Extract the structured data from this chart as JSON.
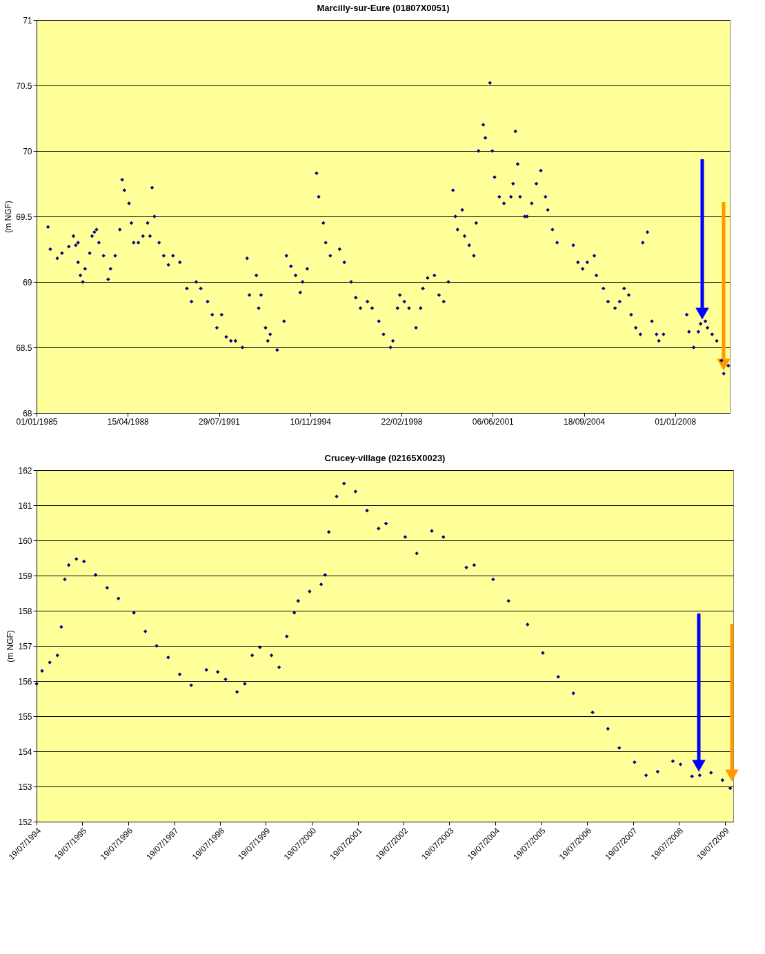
{
  "chart_data": [
    {
      "type": "scatter",
      "title": "Marcilly-sur-Eure (01807X0051)",
      "ylabel": "(m NGF)",
      "marker": "diamond",
      "grid": "y",
      "xlim": [
        "1985-01-01",
        "2009-12-20"
      ],
      "ylim": [
        68,
        71
      ],
      "yticks": [
        68,
        68.5,
        69,
        69.5,
        70,
        70.5,
        71
      ],
      "xticks": [
        {
          "value": "1985-01-01",
          "label": "01/01/1985"
        },
        {
          "value": "1988-04-15",
          "label": "15/04/1988"
        },
        {
          "value": "1991-07-29",
          "label": "29/07/1991"
        },
        {
          "value": "1994-11-10",
          "label": "10/11/1994"
        },
        {
          "value": "1998-02-22",
          "label": "22/02/1998"
        },
        {
          "value": "2001-06-06",
          "label": "06/06/2001"
        },
        {
          "value": "2004-09-18",
          "label": "18/09/2004"
        },
        {
          "value": "2008-01-01",
          "label": "01/01/2008"
        }
      ],
      "x": [
        "1985-06",
        "1985-07",
        "1985-10",
        "1985-12",
        "1986-03",
        "1986-05",
        "1986-06",
        "1986-07",
        "1986-07",
        "1986-08",
        "1986-09",
        "1986-10",
        "1986-12",
        "1987-01",
        "1987-02",
        "1987-03",
        "1987-04",
        "1987-06",
        "1987-08",
        "1987-09",
        "1987-11",
        "1988-01",
        "1988-02",
        "1988-03",
        "1988-05",
        "1988-06",
        "1988-07",
        "1988-09",
        "1988-11",
        "1989-01",
        "1989-02",
        "1989-03",
        "1989-04",
        "1989-06",
        "1989-08",
        "1989-10",
        "1989-12",
        "1990-03",
        "1990-06",
        "1990-08",
        "1990-10",
        "1990-12",
        "1991-03",
        "1991-05",
        "1991-07",
        "1991-09",
        "1991-11",
        "1992-01",
        "1992-03",
        "1992-06",
        "1992-08",
        "1992-09",
        "1992-12",
        "1993-01",
        "1993-02",
        "1993-04",
        "1993-05",
        "1993-06",
        "1993-09",
        "1993-12",
        "1994-01",
        "1994-03",
        "1994-05",
        "1994-07",
        "1994-08",
        "1994-10",
        "1995-02",
        "1995-03",
        "1995-05",
        "1995-06",
        "1995-08",
        "1995-12",
        "1996-02",
        "1996-05",
        "1996-07",
        "1996-09",
        "1996-12",
        "1997-02",
        "1997-05",
        "1997-07",
        "1997-10",
        "1997-11",
        "1998-01",
        "1998-02",
        "1998-04",
        "1998-06",
        "1998-09",
        "1998-11",
        "1998-12",
        "1999-02",
        "1999-05",
        "1999-07",
        "1999-09",
        "1999-11",
        "2000-01",
        "2000-02",
        "2000-03",
        "2000-05",
        "2000-06",
        "2000-08",
        "2000-10",
        "2000-11",
        "2000-12",
        "2001-02",
        "2001-03",
        "2001-05",
        "2001-06",
        "2001-07",
        "2001-09",
        "2001-11",
        "2002-02",
        "2002-03",
        "2002-04",
        "2002-05",
        "2002-06",
        "2002-08",
        "2002-09",
        "2002-11",
        "2003-01",
        "2003-03",
        "2003-05",
        "2003-06",
        "2003-08",
        "2003-10",
        "2004-05",
        "2004-07",
        "2004-09",
        "2004-11",
        "2005-02",
        "2005-03",
        "2005-06",
        "2005-08",
        "2005-11",
        "2006-01",
        "2006-03",
        "2006-05",
        "2006-06",
        "2006-08",
        "2006-10",
        "2006-11",
        "2007-01",
        "2007-03",
        "2007-05",
        "2007-06",
        "2007-08",
        "2008-06",
        "2008-07",
        "2008-09",
        "2008-11",
        "2008-12",
        "2009-02",
        "2009-03",
        "2009-05",
        "2009-07",
        "2009-09",
        "2009-10",
        "2009-12"
      ],
      "series": [
        {
          "color": "#000080",
          "values": [
            69.42,
            69.25,
            69.18,
            69.22,
            69.27,
            69.35,
            69.28,
            69.3,
            69.15,
            69.05,
            69.0,
            69.1,
            69.22,
            69.35,
            69.38,
            69.4,
            69.3,
            69.2,
            69.02,
            69.1,
            69.2,
            69.4,
            69.78,
            69.7,
            69.6,
            69.45,
            69.3,
            69.3,
            69.35,
            69.45,
            69.35,
            69.72,
            69.5,
            69.3,
            69.2,
            69.13,
            69.2,
            69.15,
            68.95,
            68.85,
            69.0,
            68.95,
            68.85,
            68.75,
            68.65,
            68.75,
            68.58,
            68.55,
            68.55,
            68.5,
            69.18,
            68.9,
            69.05,
            68.8,
            68.9,
            68.65,
            68.55,
            68.6,
            68.48,
            68.7,
            69.2,
            69.12,
            69.05,
            68.92,
            69.0,
            69.1,
            69.83,
            69.65,
            69.45,
            69.3,
            69.2,
            69.25,
            69.15,
            69.0,
            68.88,
            68.8,
            68.85,
            68.8,
            68.7,
            68.6,
            68.5,
            68.55,
            68.8,
            68.9,
            68.85,
            68.8,
            68.65,
            68.8,
            68.95,
            69.03,
            69.05,
            68.9,
            68.85,
            69.0,
            69.7,
            69.5,
            69.4,
            69.55,
            69.35,
            69.28,
            69.2,
            69.45,
            70.0,
            70.2,
            70.1,
            70.52,
            70.0,
            69.8,
            69.65,
            69.6,
            69.65,
            69.75,
            70.15,
            69.9,
            69.65,
            69.5,
            69.5,
            69.6,
            69.75,
            69.85,
            69.65,
            69.55,
            69.4,
            69.3,
            69.28,
            69.15,
            69.1,
            69.15,
            69.2,
            69.05,
            68.95,
            68.85,
            68.8,
            68.85,
            68.95,
            68.9,
            68.75,
            68.65,
            68.6,
            69.3,
            69.38,
            68.7,
            68.6,
            68.55,
            68.6,
            68.75,
            68.62,
            68.5,
            68.62,
            68.68,
            68.7,
            68.65,
            68.6,
            68.55,
            68.4,
            68.3,
            68.36
          ]
        }
      ]
    },
    {
      "type": "scatter",
      "title": "Crucey-village (02165X0023)",
      "ylabel": "(m NGF)",
      "marker": "diamond",
      "grid": "y",
      "xlim": [
        "1994-07-19",
        "2009-09-25"
      ],
      "ylim": [
        152,
        162
      ],
      "yticks": [
        152,
        153,
        154,
        155,
        156,
        157,
        158,
        159,
        160,
        161,
        162
      ],
      "xticks": [
        {
          "value": "1994-07-19",
          "label": "19/07/1994"
        },
        {
          "value": "1995-07-19",
          "label": "19/07/1995"
        },
        {
          "value": "1996-07-19",
          "label": "19/07/1996"
        },
        {
          "value": "1997-07-19",
          "label": "19/07/1997"
        },
        {
          "value": "1998-07-19",
          "label": "19/07/1998"
        },
        {
          "value": "1999-07-19",
          "label": "19/07/1999"
        },
        {
          "value": "2000-07-19",
          "label": "19/07/2000"
        },
        {
          "value": "2001-07-19",
          "label": "19/07/2001"
        },
        {
          "value": "2002-07-19",
          "label": "19/07/2002"
        },
        {
          "value": "2003-07-19",
          "label": "19/07/2003"
        },
        {
          "value": "2004-07-19",
          "label": "19/07/2004"
        },
        {
          "value": "2005-07-19",
          "label": "19/07/2005"
        },
        {
          "value": "2006-07-19",
          "label": "19/07/2006"
        },
        {
          "value": "2007-07-19",
          "label": "19/07/2007"
        },
        {
          "value": "2008-07-19",
          "label": "19/07/2008"
        },
        {
          "value": "2009-07-19",
          "label": "19/07/2009"
        }
      ],
      "x": [
        "1994-07-19",
        "1994-09",
        "1994-11",
        "1995-01",
        "1995-02",
        "1995-03",
        "1995-04",
        "1995-06",
        "1995-08",
        "1995-11",
        "1996-02",
        "1996-05",
        "1996-09",
        "1996-12",
        "1997-03",
        "1997-06",
        "1997-09",
        "1997-12",
        "1998-04",
        "1998-07",
        "1998-09",
        "1998-12",
        "1999-02",
        "1999-04",
        "1999-06",
        "1999-09",
        "1999-11",
        "2000-01",
        "2000-03",
        "2000-04",
        "2000-07",
        "2000-10",
        "2000-11",
        "2000-12",
        "2001-02",
        "2001-04",
        "2001-07",
        "2001-10",
        "2002-01",
        "2002-03",
        "2002-08",
        "2002-11",
        "2003-03",
        "2003-06",
        "2003-12",
        "2004-02",
        "2004-07",
        "2004-11",
        "2005-04",
        "2005-08",
        "2005-12",
        "2006-04",
        "2006-09",
        "2007-01",
        "2007-04",
        "2007-08",
        "2007-11",
        "2008-02",
        "2008-06",
        "2008-08",
        "2008-11",
        "2009-01",
        "2009-04",
        "2009-07",
        "2009-09"
      ],
      "series": [
        {
          "color": "#000080",
          "values": [
            155.92,
            156.29,
            156.53,
            156.73,
            157.54,
            158.89,
            159.3,
            159.47,
            159.4,
            159.02,
            158.65,
            158.35,
            157.94,
            157.41,
            157.0,
            156.67,
            156.19,
            155.88,
            156.32,
            156.26,
            156.05,
            155.69,
            155.92,
            156.73,
            156.96,
            156.73,
            156.39,
            157.27,
            157.94,
            158.28,
            158.55,
            158.75,
            159.02,
            160.24,
            161.25,
            161.62,
            161.39,
            160.85,
            160.34,
            160.48,
            160.1,
            159.63,
            160.27,
            160.1,
            159.23,
            159.3,
            158.89,
            158.28,
            157.61,
            156.8,
            156.12,
            155.65,
            155.11,
            154.64,
            154.1,
            153.69,
            153.32,
            153.42,
            153.72,
            153.63,
            153.29,
            153.32,
            153.39,
            153.18,
            152.95
          ]
        }
      ]
    }
  ]
}
